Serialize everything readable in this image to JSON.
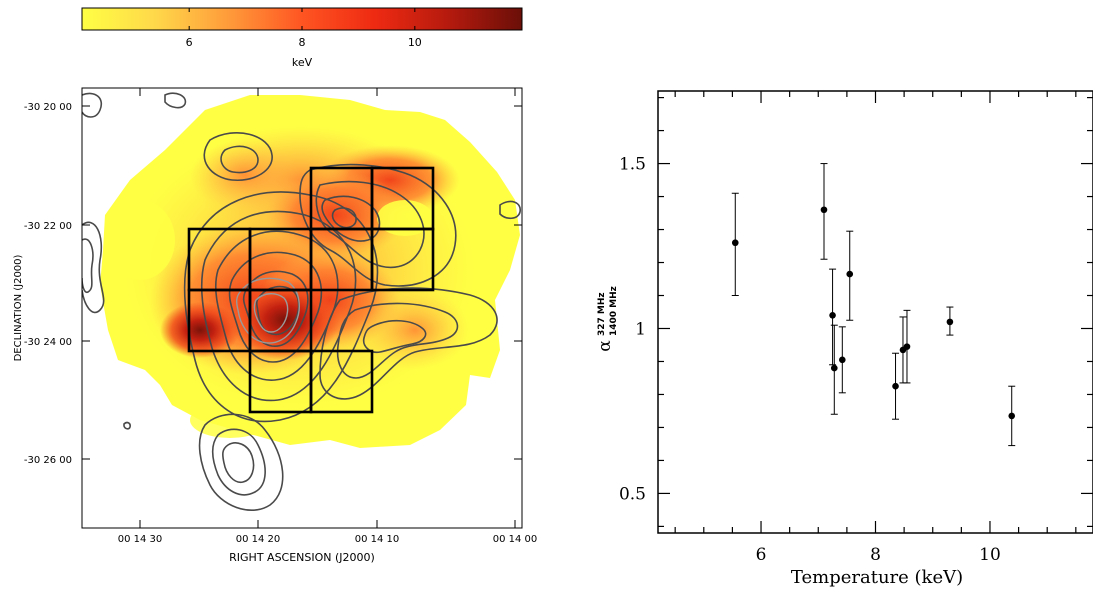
{
  "colorbar": {
    "ticks": [
      "6",
      "8",
      "10"
    ],
    "tick_values": [
      6,
      8,
      10
    ],
    "range": [
      4.1,
      11.9
    ],
    "label": "keV",
    "colors": [
      "#ffff44",
      "#ffd84a",
      "#ff9b3a",
      "#ff5522",
      "#ee2a12",
      "#b51a0e",
      "#6a0f08"
    ]
  },
  "map": {
    "ylabel": "DECLINATION  (J2000)",
    "xlabel": "RIGHT ASCENSION  (J2000)",
    "y_ticks": [
      "-30 20 00",
      "-30 22 00",
      "-30 24 00",
      "-30 26 00"
    ],
    "x_ticks": [
      "00 14 30",
      "00 14 20",
      "00 14 10",
      "00 14 00"
    ],
    "contour_color": "#4a4a4a",
    "grid_color": "#000000"
  },
  "chart_data": {
    "type": "scatter",
    "title": "",
    "xlabel": "Temperature (keV)",
    "ylabel": "α",
    "ylabel_sup": "327 MHz",
    "ylabel_sub": "1400 MHz",
    "xlim": [
      4.2,
      11.8
    ],
    "ylim": [
      0.38,
      1.72
    ],
    "x_ticks": [
      6,
      8,
      10
    ],
    "y_ticks": [
      0.5,
      1,
      1.5
    ],
    "y_tick_labels": [
      "0.5",
      "1",
      "1.5"
    ],
    "points": [
      {
        "x": 5.55,
        "y": 1.26,
        "err_low": 0.16,
        "err_high": 0.15
      },
      {
        "x": 7.1,
        "y": 1.36,
        "err_low": 0.15,
        "err_high": 0.14
      },
      {
        "x": 7.25,
        "y": 1.04,
        "err_low": 0.15,
        "err_high": 0.14
      },
      {
        "x": 7.28,
        "y": 0.88,
        "err_low": 0.14,
        "err_high": 0.13
      },
      {
        "x": 7.42,
        "y": 0.905,
        "err_low": 0.1,
        "err_high": 0.1
      },
      {
        "x": 7.55,
        "y": 1.165,
        "err_low": 0.14,
        "err_high": 0.13
      },
      {
        "x": 8.35,
        "y": 0.825,
        "err_low": 0.1,
        "err_high": 0.1
      },
      {
        "x": 8.48,
        "y": 0.935,
        "err_low": 0.1,
        "err_high": 0.1
      },
      {
        "x": 8.55,
        "y": 0.945,
        "err_low": 0.11,
        "err_high": 0.11
      },
      {
        "x": 9.3,
        "y": 1.02,
        "err_low": 0.04,
        "err_high": 0.045
      },
      {
        "x": 10.38,
        "y": 0.735,
        "err_low": 0.09,
        "err_high": 0.09
      }
    ]
  }
}
